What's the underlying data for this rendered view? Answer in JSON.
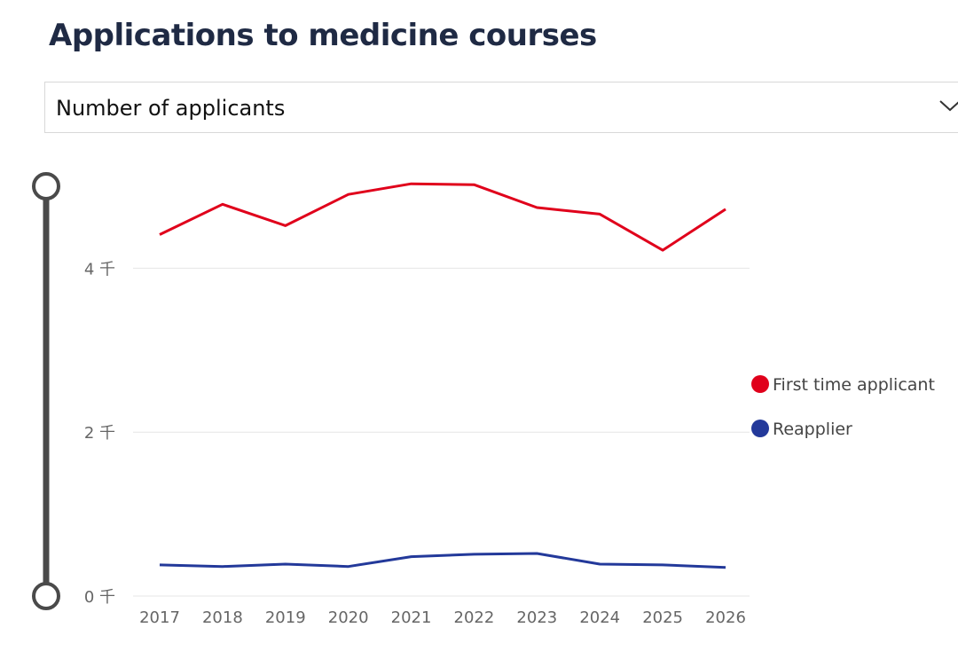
{
  "page_title": "Applications to medicine courses",
  "measure_selector": {
    "selected": "Number of applicants",
    "icon": "chevron-down-icon"
  },
  "range_slider": {
    "icon": "range-slider-handle"
  },
  "chart_data": {
    "type": "line",
    "x": [
      "2017",
      "2018",
      "2019",
      "2020",
      "2021",
      "2022",
      "2023",
      "2024",
      "2025",
      "2026"
    ],
    "series": [
      {
        "name": "First time applicant",
        "color": "#E0001B",
        "values": [
          4410,
          4780,
          4520,
          4900,
          5030,
          5020,
          4740,
          4660,
          4220,
          4720
        ]
      },
      {
        "name": "Reapplier",
        "color": "#23399A",
        "values": [
          380,
          360,
          390,
          360,
          480,
          510,
          520,
          390,
          380,
          350
        ]
      }
    ],
    "ylim": [
      0,
      5000
    ],
    "yticks": [
      0,
      2000,
      4000
    ],
    "ytick_labels": [
      "0 千",
      "2 千",
      "4 千"
    ],
    "grid": true,
    "legend_position": "right"
  }
}
